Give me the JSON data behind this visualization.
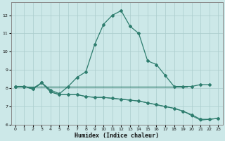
{
  "title": "",
  "xlabel": "Humidex (Indice chaleur)",
  "xlim": [
    -0.5,
    23.5
  ],
  "ylim": [
    6,
    12.7
  ],
  "yticks": [
    6,
    7,
    8,
    9,
    10,
    11,
    12
  ],
  "xticks": [
    0,
    1,
    2,
    3,
    4,
    5,
    6,
    7,
    8,
    9,
    10,
    11,
    12,
    13,
    14,
    15,
    16,
    17,
    18,
    19,
    20,
    21,
    22,
    23
  ],
  "bg_color": "#cce8e8",
  "line_color": "#2e7d6e",
  "grid_color": "#aacccc",
  "series1_x": [
    0,
    1,
    2,
    3,
    4,
    5,
    6,
    7,
    8,
    9,
    10,
    11,
    12,
    13,
    14,
    15,
    16,
    17,
    18,
    19,
    20,
    21,
    22
  ],
  "series1_y": [
    8.1,
    8.1,
    8.0,
    8.3,
    7.9,
    7.7,
    8.1,
    8.6,
    8.9,
    10.4,
    11.5,
    12.0,
    12.25,
    11.4,
    11.0,
    9.5,
    9.3,
    8.7,
    8.1,
    8.1,
    8.1,
    8.2,
    8.2
  ],
  "series2_x": [
    0,
    1,
    2,
    3,
    4,
    5,
    6,
    7,
    8,
    9,
    10,
    11,
    12,
    13,
    14,
    15,
    16,
    17,
    18,
    19,
    20,
    21,
    22,
    23
  ],
  "series2_y": [
    8.1,
    8.1,
    7.95,
    8.3,
    7.8,
    7.65,
    7.65,
    7.65,
    7.55,
    7.5,
    7.5,
    7.45,
    7.4,
    7.35,
    7.3,
    7.2,
    7.1,
    7.0,
    6.9,
    6.75,
    6.55,
    6.3,
    6.3,
    6.35
  ],
  "series3_x": [
    0,
    1,
    2,
    3,
    4,
    5,
    6,
    7,
    8,
    9,
    10,
    11,
    12,
    13,
    14,
    15,
    16,
    17,
    18,
    19,
    20,
    21,
    22,
    23
  ],
  "series3_y": [
    8.1,
    8.1,
    7.95,
    8.3,
    7.8,
    7.65,
    7.65,
    7.65,
    7.55,
    7.5,
    7.5,
    7.45,
    7.4,
    7.35,
    7.3,
    7.2,
    7.1,
    7.0,
    6.9,
    6.75,
    6.5,
    6.25,
    6.3,
    6.35
  ],
  "hline_y": 8.1,
  "hline_x0": 0,
  "hline_x1": 19.5
}
